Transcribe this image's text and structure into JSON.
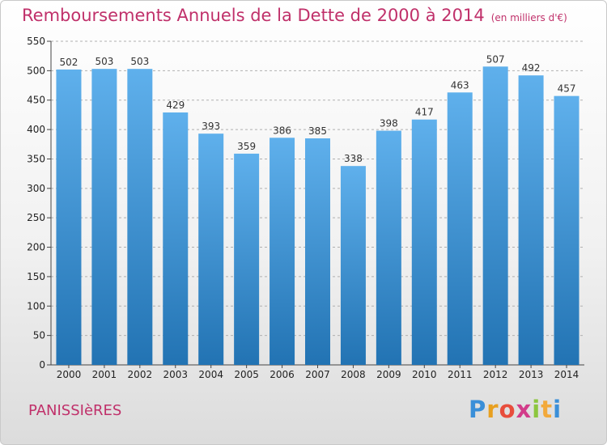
{
  "title": "Remboursements Annuels de la Dette de 2000 à 2014",
  "unit": "(en milliers d'€)",
  "commune": "PANISSIèRES",
  "logo": {
    "letters": [
      "P",
      "r",
      "o",
      "x",
      "i",
      "t",
      "i"
    ],
    "colors": [
      "#3a8fd8",
      "#e8a020",
      "#e84d3c",
      "#d23c8a",
      "#8cc63f",
      "#f2a93b",
      "#3a8fd8"
    ]
  },
  "colors": {
    "bar_top": "#5fb0ec",
    "bar_bottom": "#2273b3",
    "title": "#c0306a",
    "grid": "#b0b0b0"
  },
  "chart_data": {
    "type": "bar",
    "categories": [
      "2000",
      "2001",
      "2002",
      "2003",
      "2004",
      "2005",
      "2006",
      "2007",
      "2008",
      "2009",
      "2010",
      "2011",
      "2012",
      "2013",
      "2014"
    ],
    "values": [
      502,
      503,
      503,
      429,
      393,
      359,
      386,
      385,
      338,
      398,
      417,
      463,
      507,
      492,
      457
    ],
    "ylim": [
      0,
      550
    ],
    "yticks": [
      0,
      50,
      100,
      150,
      200,
      250,
      300,
      350,
      400,
      450,
      500,
      550
    ],
    "grid": true,
    "grid_style": "dashed horizontal",
    "data_labels": true
  }
}
